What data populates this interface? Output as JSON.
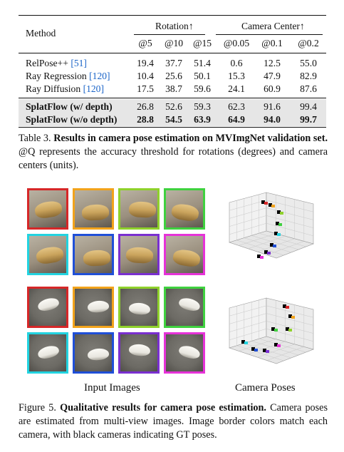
{
  "table": {
    "method_header": "Method",
    "rotation_header": "Rotation↑",
    "center_header": "Camera Center↑",
    "thresholds": [
      "@5",
      "@10",
      "@15",
      "@0.05",
      "@0.1",
      "@0.2"
    ],
    "rows": [
      {
        "method": "RelPose++",
        "ref": "[51]",
        "values": [
          "19.4",
          "37.7",
          "51.4",
          "0.6",
          "12.5",
          "55.0"
        ],
        "bold": false
      },
      {
        "method": "Ray Regression",
        "ref": "[120]",
        "values": [
          "10.4",
          "25.6",
          "50.1",
          "15.3",
          "47.9",
          "82.9"
        ],
        "bold": false
      },
      {
        "method": "Ray Diffusion",
        "ref": "[120]",
        "values": [
          "17.5",
          "38.7",
          "59.6",
          "24.1",
          "60.9",
          "87.6"
        ],
        "bold": false
      },
      {
        "method": "SplatFlow (w/ depth)",
        "ref": "",
        "values": [
          "26.8",
          "52.6",
          "59.3",
          "62.3",
          "91.6",
          "99.4"
        ],
        "bold": false
      },
      {
        "method": "SplatFlow (w/o depth)",
        "ref": "",
        "values": [
          "28.8",
          "54.5",
          "63.9",
          "64.9",
          "94.0",
          "99.7"
        ],
        "bold": true
      }
    ]
  },
  "table_caption": {
    "label": "Table 3.",
    "title": "Results in camera pose estimation on MVImgNet validation set.",
    "body": "@Q represents the accuracy threshold for rotations (degrees) and camera centers (units)."
  },
  "figure": {
    "input_label": "Input Images",
    "poses_label": "Camera Poses",
    "border_colors": [
      "#d62728",
      "#f2a31b",
      "#8fd12b",
      "#3fd13f",
      "#22d3e0",
      "#1f4fd8",
      "#7a2fd0",
      "#e632d8"
    ],
    "scene1_colors": {
      "bg": "#9a8f7e",
      "obj": "#c9a35c"
    },
    "scene2_colors": {
      "bg": "#6c6a64",
      "obj": "#e8e6df"
    }
  },
  "figure_caption": {
    "label": "Figure 5.",
    "title": "Qualitative results for camera pose estimation.",
    "body": "Camera poses are estimated from multi-view images. Image border colors match each camera, with black cameras indicating GT poses."
  }
}
